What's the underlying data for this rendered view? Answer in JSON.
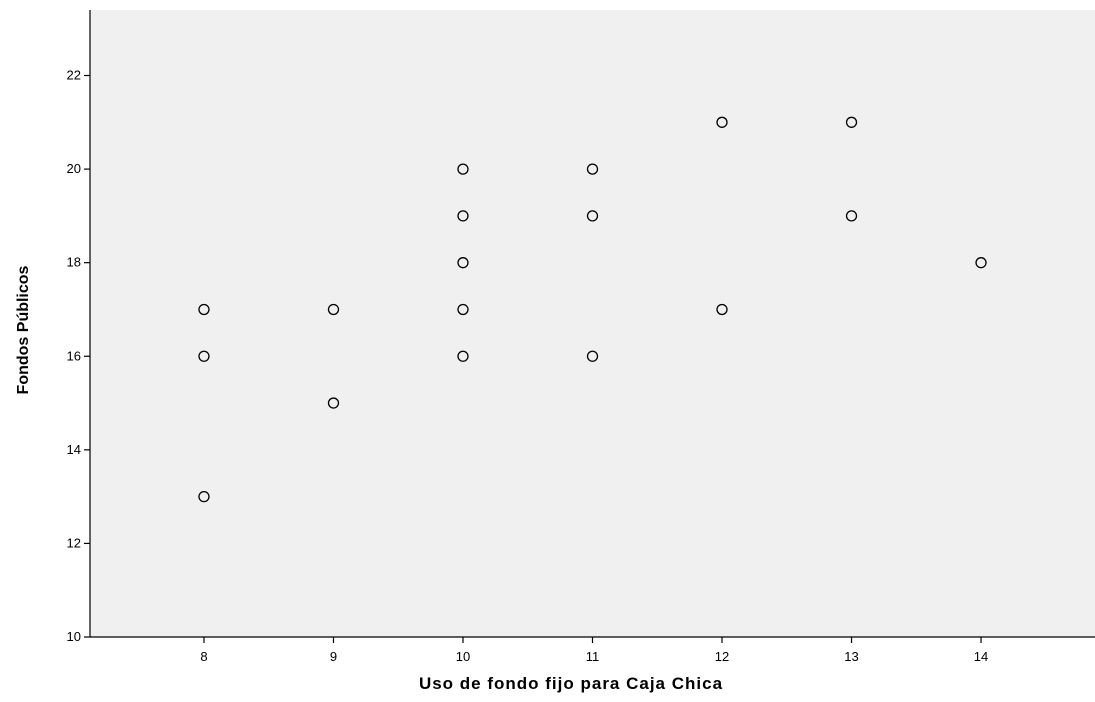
{
  "chart_data": {
    "type": "scatter",
    "title": "",
    "xlabel": "Uso de fondo fijo para Caja Chica",
    "ylabel": "Fondos Públicos",
    "xlim": [
      7.12,
      14.88
    ],
    "ylim": [
      10,
      23.4
    ],
    "x_ticks": [
      8,
      9,
      10,
      11,
      12,
      13,
      14
    ],
    "y_ticks": [
      10,
      12,
      14,
      16,
      18,
      20,
      22
    ],
    "grid": false,
    "legend": "none",
    "colors": {
      "plot_bg": "#f0f0f0",
      "marker_stroke": "#000000",
      "axis": "#000000"
    },
    "points": [
      {
        "x": 8,
        "y": 17
      },
      {
        "x": 8,
        "y": 16
      },
      {
        "x": 8,
        "y": 13
      },
      {
        "x": 9,
        "y": 17
      },
      {
        "x": 9,
        "y": 15
      },
      {
        "x": 10,
        "y": 20
      },
      {
        "x": 10,
        "y": 19
      },
      {
        "x": 10,
        "y": 18
      },
      {
        "x": 10,
        "y": 17
      },
      {
        "x": 10,
        "y": 16
      },
      {
        "x": 11,
        "y": 20
      },
      {
        "x": 11,
        "y": 19
      },
      {
        "x": 11,
        "y": 16
      },
      {
        "x": 12,
        "y": 21
      },
      {
        "x": 12,
        "y": 17
      },
      {
        "x": 13,
        "y": 21
      },
      {
        "x": 13,
        "y": 19
      },
      {
        "x": 14,
        "y": 18
      }
    ]
  }
}
